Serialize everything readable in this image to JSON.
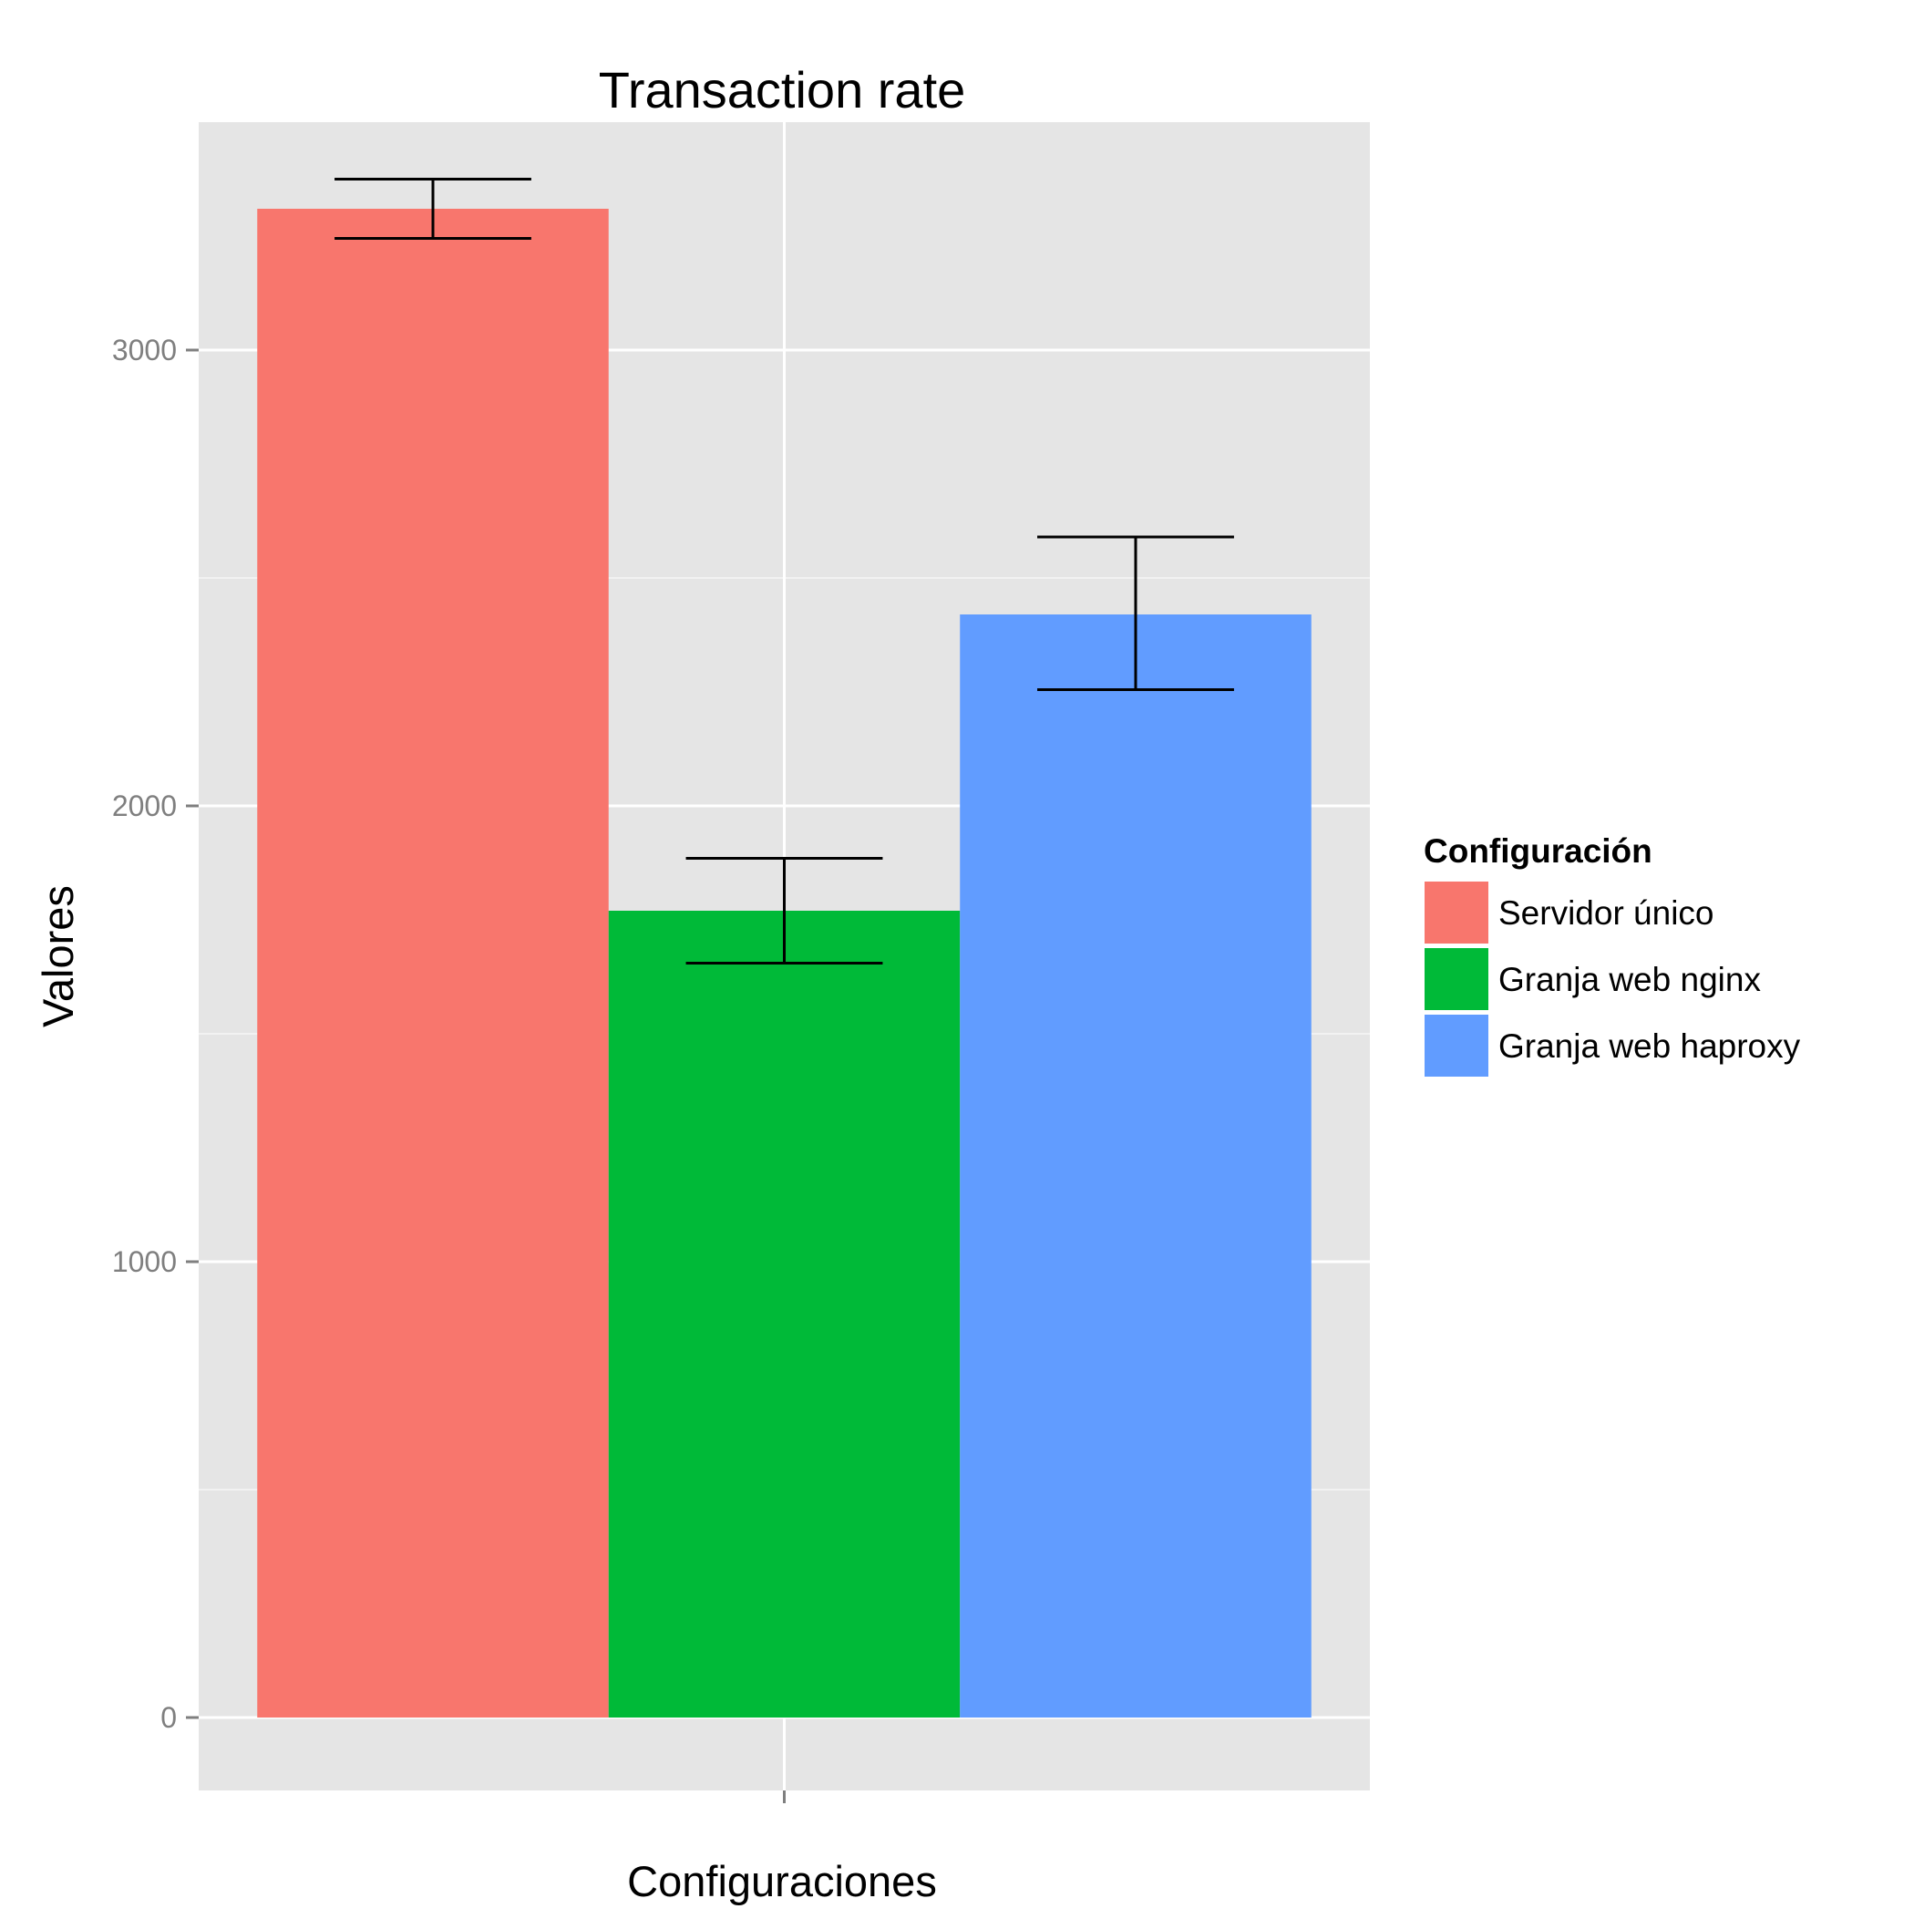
{
  "chart_data": {
    "type": "bar",
    "title": "Transaction rate",
    "xlabel": "Configuraciones",
    "ylabel": "Valores",
    "ylim": [
      -160,
      3500
    ],
    "yticks": [
      0,
      1000,
      2000,
      3000
    ],
    "grid": true,
    "legend": {
      "title": "Configuración",
      "placement": "right"
    },
    "series": [
      {
        "name": "Servidor único",
        "value": 3310,
        "err_low": 3245,
        "err_high": 3375,
        "color": "#F8766D"
      },
      {
        "name": "Granja web nginx",
        "value": 1770,
        "err_low": 1655,
        "err_high": 1885,
        "color": "#00BA38"
      },
      {
        "name": "Granja web haproxy",
        "value": 2420,
        "err_low": 2255,
        "err_high": 2590,
        "color": "#619CFF"
      }
    ]
  },
  "colors": {
    "panel_background": "#E5E5E5",
    "grid_major": "#FFFFFF",
    "grid_minor": "#F2F2F2",
    "errorbar": "#000000",
    "tick_text": "#7F7F7F"
  }
}
